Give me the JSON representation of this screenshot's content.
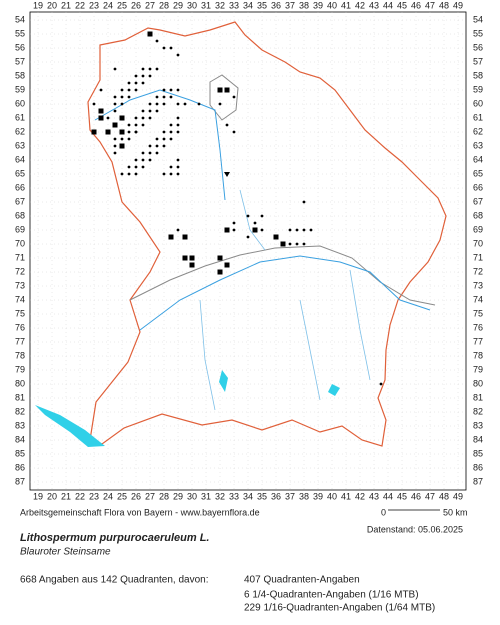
{
  "grid": {
    "columns": [
      19,
      20,
      21,
      22,
      23,
      24,
      25,
      26,
      27,
      28,
      29,
      30,
      31,
      32,
      33,
      34,
      35,
      36,
      37,
      38,
      39,
      40,
      41,
      42,
      43,
      44,
      45,
      46,
      47,
      48,
      49
    ],
    "rows": [
      54,
      55,
      56,
      57,
      58,
      59,
      60,
      61,
      62,
      63,
      64,
      65,
      66,
      67,
      68,
      69,
      70,
      71,
      72,
      73,
      74,
      75,
      76,
      77,
      78,
      79,
      80,
      81,
      82,
      83,
      84,
      85,
      86,
      87
    ]
  },
  "scale": {
    "start": "0",
    "end": "50 km"
  },
  "footer": {
    "credit": "Arbeitsgemeinschaft Flora von Bayern - www.bayernflora.de",
    "date": "Datenstand: 05.06.2025"
  },
  "species": {
    "name": "Lithospermum purpurocaeruleum L.",
    "common_name": "Blauroter Steinsame"
  },
  "summary": {
    "total": "668 Angaben aus 142 Quadranten, davon:",
    "lines": [
      "407 Quadranten-Angaben",
      "6 1/4-Quadranten-Angaben (1/16 MTB)",
      "229 1/16-Quadranten-Angaben (1/64 MTB)"
    ]
  }
}
